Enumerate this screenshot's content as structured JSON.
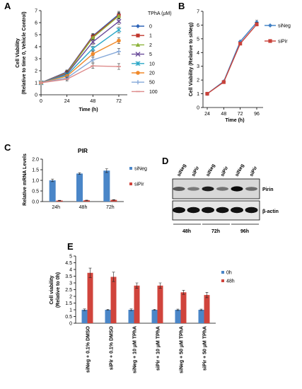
{
  "panel_labels": [
    "A",
    "B",
    "C",
    "D",
    "E"
  ],
  "chart_data": [
    {
      "panel": "A",
      "type": "line",
      "xlabel": "Time (h)",
      "ylabel": [
        "Cell Viability",
        "(Relative to time 0, Vehicle Control)"
      ],
      "legend_title": "TPhA (µM)",
      "x": [
        0,
        24,
        48,
        72
      ],
      "xticks": [
        "0",
        "24",
        "48",
        "72"
      ],
      "yticks": [
        "0",
        "1",
        "2",
        "3",
        "4",
        "5",
        "6",
        "7"
      ],
      "ylim": [
        0,
        7
      ],
      "legend_position": "right",
      "series": [
        {
          "name": "0",
          "values": [
            1,
            1.9,
            4.9,
            6.7
          ],
          "color": "#2e64b7",
          "marker": "diamond"
        },
        {
          "name": "1",
          "values": [
            1,
            1.85,
            4.85,
            6.6
          ],
          "color": "#c0372d",
          "marker": "square"
        },
        {
          "name": "2",
          "values": [
            1,
            1.8,
            4.75,
            6.55
          ],
          "color": "#8db33c",
          "marker": "triangle"
        },
        {
          "name": "5",
          "values": [
            1,
            1.75,
            4.4,
            6.1
          ],
          "color": "#6b4c9a",
          "marker": "x"
        },
        {
          "name": "10",
          "values": [
            1,
            1.65,
            3.85,
            5.4
          ],
          "color": "#2aa7c7",
          "marker": "star"
        },
        {
          "name": "20",
          "values": [
            1,
            1.55,
            3.4,
            4.5
          ],
          "color": "#f08a2b",
          "marker": "circle"
        },
        {
          "name": "50",
          "values": [
            1,
            1.4,
            2.9,
            3.6
          ],
          "color": "#86a9d9",
          "marker": "plus"
        },
        {
          "name": "100",
          "values": [
            1,
            1.3,
            2.4,
            2.35
          ],
          "color": "#de8c8c",
          "marker": "dash"
        }
      ]
    },
    {
      "panel": "B",
      "type": "line",
      "xlabel": "Time (h)",
      "ylabel": [
        "Cell Viability (Relative to siNeg)"
      ],
      "x": [
        24,
        48,
        72,
        96
      ],
      "xticks": [
        "24",
        "48",
        "72",
        "96"
      ],
      "yticks": [
        "0",
        "1",
        "2",
        "3",
        "4",
        "5",
        "6",
        "7"
      ],
      "ylim": [
        0,
        7
      ],
      "legend_position": "right",
      "series": [
        {
          "name": "siNeg",
          "values": [
            1,
            1.9,
            4.8,
            6.2
          ],
          "color": "#3f7fc4",
          "marker": "diamond"
        },
        {
          "name": "siPir",
          "values": [
            1,
            1.85,
            4.65,
            6.05
          ],
          "color": "#c9423a",
          "marker": "square"
        }
      ]
    },
    {
      "panel": "C",
      "type": "bar",
      "title": "PIR",
      "ylabel": [
        "Relative mRNA Levels"
      ],
      "categories": [
        "24h",
        "48h",
        "72h"
      ],
      "yticks": [
        "0.0",
        "0.5",
        "1.0",
        "1.5",
        "2.0"
      ],
      "ylim": [
        0,
        2
      ],
      "legend_position": "right",
      "series": [
        {
          "name": "siNeg",
          "values": [
            1.0,
            1.32,
            1.46
          ],
          "errors": [
            0.06,
            0.04,
            0.09
          ],
          "color": "#4a86c8"
        },
        {
          "name": "siPir",
          "values": [
            0.05,
            0.06,
            0.08
          ],
          "errors": [
            0.01,
            0.01,
            0.01
          ],
          "color": "#d0443c"
        }
      ]
    },
    {
      "panel": "E",
      "type": "bar",
      "ylabel": [
        "Cell viability",
        "(Relative to 0h)"
      ],
      "categories": [
        "siNeg + 0.1% DMSO",
        "siPir + 0.1% DMSO",
        "siNeg + 10 µM TPhA",
        "siPir + 10 µM TPhA",
        "siNeg + 50 µM TPhA",
        "siPir + 50 µM TPhA"
      ],
      "yticks": [
        "0",
        "0.5",
        "1",
        "1.5",
        "2",
        "2.5",
        "3",
        "3.5",
        "4",
        "4.5",
        "5"
      ],
      "ylim": [
        0,
        5
      ],
      "legend_position": "right",
      "series": [
        {
          "name": "0h",
          "values": [
            1,
            1,
            1,
            1,
            1,
            1
          ],
          "errors": [
            0.06,
            0.04,
            0.06,
            0.04,
            0.05,
            0.05
          ],
          "color": "#4a86c8"
        },
        {
          "name": "48h",
          "values": [
            3.75,
            3.45,
            2.8,
            2.8,
            2.3,
            2.1
          ],
          "errors": [
            0.35,
            0.35,
            0.2,
            0.2,
            0.15,
            0.2
          ],
          "color": "#d0443c"
        }
      ]
    }
  ],
  "western_blot": {
    "lane_labels": [
      "siNeg",
      "siPir",
      "siNeg",
      "siPir",
      "siNeg",
      "siPir"
    ],
    "row_labels": [
      "Pirin",
      "β-actin"
    ],
    "time_labels": [
      "48h",
      "72h",
      "96h"
    ],
    "pirin_intensity": [
      0.45,
      0.2,
      0.85,
      0.25,
      1.0,
      0.3
    ]
  }
}
